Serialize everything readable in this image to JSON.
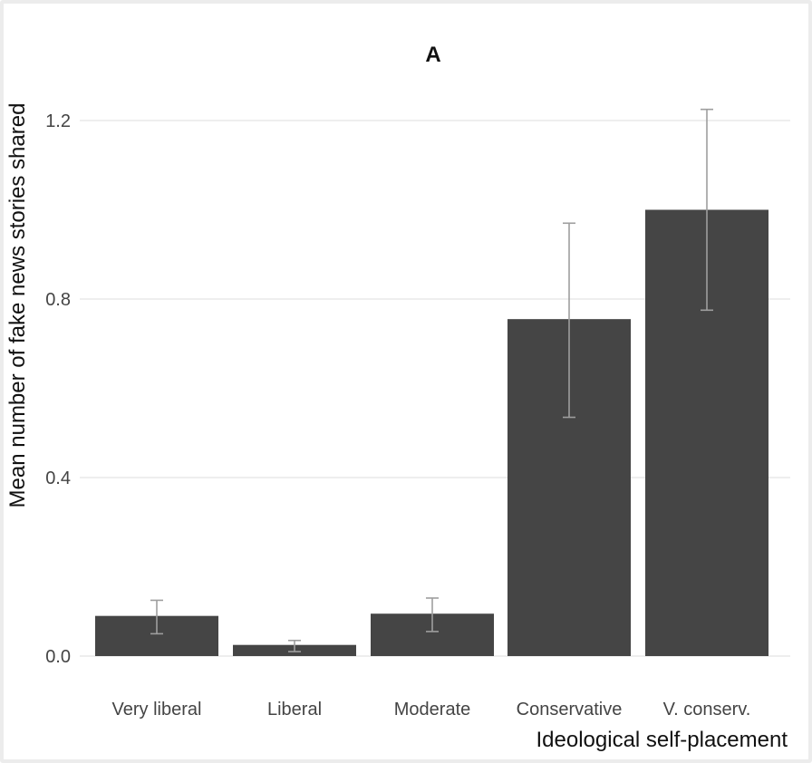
{
  "chart_data": {
    "type": "bar",
    "title": "A",
    "xlabel": "Ideological self-placement",
    "ylabel": "Mean number of fake news stories shared",
    "categories": [
      "Very liberal",
      "Liberal",
      "Moderate",
      "Conservative",
      "V. conserv."
    ],
    "values": [
      0.09,
      0.025,
      0.095,
      0.755,
      1.0
    ],
    "error_low": [
      0.05,
      0.01,
      0.055,
      0.535,
      0.775
    ],
    "error_high": [
      0.125,
      0.035,
      0.13,
      0.97,
      1.225
    ],
    "yticks": [
      "0.0",
      "0.4",
      "0.8",
      "1.2"
    ],
    "ytick_values": [
      0,
      0.4,
      0.8,
      1.2
    ],
    "ylim": [
      0,
      1.3
    ],
    "grid": "horizontal",
    "legend": "none",
    "colors": {
      "bar": "#454545",
      "error_bar": "#9e9e9e",
      "gridline": "#e3e3e3",
      "text": "#111111",
      "tick_text": "#444444"
    }
  }
}
